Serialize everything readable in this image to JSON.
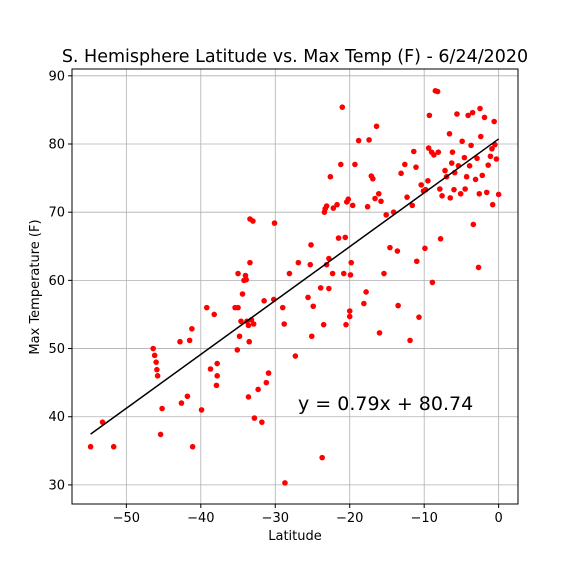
{
  "chart_data": {
    "type": "scatter",
    "title": "S. Hemisphere Latitude vs. Max Temp (F) - 6/24/2020",
    "xlabel": "Latitude",
    "ylabel": "Max Temperature (F)",
    "xlim": [
      -57.3,
      2.6
    ],
    "ylim": [
      27.2,
      91.0
    ],
    "xticks": [
      -50,
      -40,
      -30,
      -20,
      -10,
      0
    ],
    "yticks": [
      30,
      40,
      50,
      60,
      70,
      80,
      90
    ],
    "grid": true,
    "point_color": "#ff0000",
    "line_color": "#000000",
    "regression": {
      "slope": 0.79,
      "intercept": 80.74,
      "x_range": [
        -54.8,
        0.0
      ]
    },
    "annotation": "y = 0.79x + 80.74",
    "points": [
      [
        -54.8,
        35.6
      ],
      [
        -53.2,
        39.2
      ],
      [
        -51.7,
        35.6
      ],
      [
        -46.4,
        50.0
      ],
      [
        -46.2,
        49.0
      ],
      [
        -46.0,
        48.0
      ],
      [
        -45.9,
        46.9
      ],
      [
        -45.8,
        46.0
      ],
      [
        -45.4,
        37.4
      ],
      [
        -45.2,
        41.2
      ],
      [
        -42.6,
        42.0
      ],
      [
        -42.8,
        51.0
      ],
      [
        -41.5,
        51.2
      ],
      [
        -41.2,
        52.9
      ],
      [
        -41.8,
        43.0
      ],
      [
        -41.1,
        35.6
      ],
      [
        -39.9,
        41.0
      ],
      [
        -39.2,
        56.0
      ],
      [
        -38.7,
        47.0
      ],
      [
        -38.2,
        55.0
      ],
      [
        -37.9,
        44.6
      ],
      [
        -37.8,
        46.0
      ],
      [
        -37.8,
        47.8
      ],
      [
        -35.4,
        56.0
      ],
      [
        -35.1,
        49.8
      ],
      [
        -35.0,
        56.0
      ],
      [
        -35.0,
        61.0
      ],
      [
        -34.8,
        51.8
      ],
      [
        -34.6,
        54.0
      ],
      [
        -34.4,
        58.0
      ],
      [
        -34.2,
        60.0
      ],
      [
        -34.0,
        60.7
      ],
      [
        -33.9,
        60.1
      ],
      [
        -33.8,
        54.0
      ],
      [
        -33.6,
        42.9
      ],
      [
        -33.6,
        53.4
      ],
      [
        -33.5,
        51.0
      ],
      [
        -33.4,
        62.6
      ],
      [
        -33.4,
        69.0
      ],
      [
        -33.2,
        54.2
      ],
      [
        -33.0,
        68.7
      ],
      [
        -32.9,
        53.6
      ],
      [
        -32.8,
        39.8
      ],
      [
        -32.3,
        44.0
      ],
      [
        -31.8,
        39.2
      ],
      [
        -31.5,
        57.0
      ],
      [
        -31.2,
        45.0
      ],
      [
        -30.9,
        46.4
      ],
      [
        -30.2,
        57.2
      ],
      [
        -30.1,
        68.4
      ],
      [
        -29.0,
        56.0
      ],
      [
        -28.8,
        53.6
      ],
      [
        -28.7,
        30.3
      ],
      [
        -28.1,
        61.0
      ],
      [
        -27.3,
        48.9
      ],
      [
        -26.9,
        62.6
      ],
      [
        -25.6,
        57.5
      ],
      [
        -25.3,
        62.3
      ],
      [
        -25.2,
        65.2
      ],
      [
        -25.1,
        51.8
      ],
      [
        -24.9,
        56.2
      ],
      [
        -23.9,
        58.9
      ],
      [
        -23.7,
        34.0
      ],
      [
        -23.5,
        53.5
      ],
      [
        -23.4,
        70.0
      ],
      [
        -23.3,
        70.5
      ],
      [
        -23.1,
        70.9
      ],
      [
        -23.1,
        62.3
      ],
      [
        -22.8,
        63.2
      ],
      [
        -22.8,
        58.8
      ],
      [
        -22.6,
        75.2
      ],
      [
        -22.3,
        61.0
      ],
      [
        -22.2,
        70.6
      ],
      [
        -21.7,
        71.1
      ],
      [
        -21.5,
        66.2
      ],
      [
        -21.2,
        77.0
      ],
      [
        -21.0,
        85.4
      ],
      [
        -20.8,
        61.0
      ],
      [
        -20.6,
        66.3
      ],
      [
        -20.5,
        53.5
      ],
      [
        -20.4,
        71.5
      ],
      [
        -20.2,
        71.9
      ],
      [
        -20.0,
        55.5
      ],
      [
        -20.0,
        54.7
      ],
      [
        -19.9,
        60.8
      ],
      [
        -19.8,
        62.6
      ],
      [
        -19.6,
        71.0
      ],
      [
        -19.3,
        77.0
      ],
      [
        -18.8,
        80.5
      ],
      [
        -18.1,
        56.6
      ],
      [
        -17.8,
        58.3
      ],
      [
        -17.6,
        70.8
      ],
      [
        -17.4,
        80.6
      ],
      [
        -17.1,
        75.3
      ],
      [
        -16.9,
        74.9
      ],
      [
        -16.6,
        72.0
      ],
      [
        -16.4,
        82.6
      ],
      [
        -16.1,
        72.7
      ],
      [
        -16.0,
        52.3
      ],
      [
        -15.8,
        71.6
      ],
      [
        -15.4,
        61.0
      ],
      [
        -15.1,
        69.6
      ],
      [
        -14.6,
        64.8
      ],
      [
        -14.1,
        70.0
      ],
      [
        -13.6,
        64.3
      ],
      [
        -13.5,
        56.3
      ],
      [
        -13.1,
        75.7
      ],
      [
        -12.6,
        77.0
      ],
      [
        -12.3,
        72.2
      ],
      [
        -11.9,
        51.2
      ],
      [
        -11.6,
        71.0
      ],
      [
        -11.4,
        78.9
      ],
      [
        -11.1,
        76.6
      ],
      [
        -11.0,
        62.8
      ],
      [
        -10.7,
        54.6
      ],
      [
        -10.4,
        74.0
      ],
      [
        -10.1,
        73.1
      ],
      [
        -9.9,
        64.7
      ],
      [
        -9.8,
        73.3
      ],
      [
        -9.5,
        74.6
      ],
      [
        -9.4,
        79.4
      ],
      [
        -9.3,
        84.2
      ],
      [
        -9.0,
        78.8
      ],
      [
        -8.9,
        59.7
      ],
      [
        -8.7,
        78.4
      ],
      [
        -8.5,
        87.8
      ],
      [
        -8.2,
        87.7
      ],
      [
        -8.1,
        78.8
      ],
      [
        -7.9,
        73.4
      ],
      [
        -7.8,
        66.1
      ],
      [
        -7.6,
        72.4
      ],
      [
        -7.2,
        76.1
      ],
      [
        -7.0,
        75.2
      ],
      [
        -6.6,
        81.5
      ],
      [
        -6.5,
        72.1
      ],
      [
        -6.3,
        77.2
      ],
      [
        -6.2,
        78.8
      ],
      [
        -6.0,
        73.3
      ],
      [
        -5.9,
        75.8
      ],
      [
        -5.6,
        84.4
      ],
      [
        -5.4,
        76.8
      ],
      [
        -5.1,
        72.7
      ],
      [
        -4.9,
        80.4
      ],
      [
        -4.6,
        78.0
      ],
      [
        -4.5,
        73.4
      ],
      [
        -4.3,
        75.2
      ],
      [
        -4.1,
        84.2
      ],
      [
        -3.9,
        76.8
      ],
      [
        -3.7,
        79.8
      ],
      [
        -3.5,
        84.6
      ],
      [
        -3.4,
        68.2
      ],
      [
        -3.1,
        74.8
      ],
      [
        -2.9,
        77.9
      ],
      [
        -2.7,
        61.9
      ],
      [
        -2.6,
        72.7
      ],
      [
        -2.5,
        85.2
      ],
      [
        -2.4,
        81.1
      ],
      [
        -2.2,
        75.4
      ],
      [
        -1.9,
        83.9
      ],
      [
        -1.6,
        72.9
      ],
      [
        -1.4,
        76.9
      ],
      [
        -1.1,
        78.2
      ],
      [
        -0.9,
        79.3
      ],
      [
        -0.8,
        71.1
      ],
      [
        -0.6,
        83.3
      ],
      [
        -0.5,
        79.9
      ],
      [
        -0.3,
        77.8
      ],
      [
        0.0,
        72.6
      ]
    ]
  }
}
